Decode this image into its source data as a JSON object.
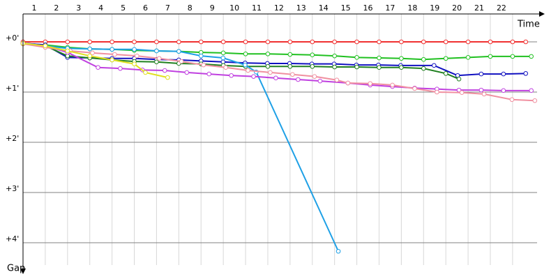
{
  "chart_data": {
    "type": "line",
    "x_label": "Time",
    "y_label": "Gap",
    "xlim": [
      0.5,
      23.6
    ],
    "ylim": [
      -0.5,
      4.5
    ],
    "xticks": [
      1,
      2,
      3,
      4,
      5,
      6,
      7,
      8,
      9,
      10,
      11,
      12,
      13,
      14,
      15,
      16,
      17,
      18,
      19,
      20,
      21,
      22
    ],
    "yticks": [
      {
        "value": 0,
        "label": "+0'"
      },
      {
        "value": 1,
        "label": "+1'"
      },
      {
        "value": 2,
        "label": "+2'"
      },
      {
        "value": 3,
        "label": "+3'"
      },
      {
        "value": 4,
        "label": "+4'"
      }
    ],
    "grid": true,
    "series": [
      {
        "color": "#f03030",
        "x": [
          0.5,
          1.5,
          2.5,
          3.5,
          4.5,
          5.5,
          6.5,
          7.5,
          8.5,
          9.5,
          10.5,
          11.5,
          12.5,
          13.5,
          14.5,
          15.5,
          16.5,
          17.5,
          18.5,
          19.5,
          20.5,
          21.5,
          22.5,
          23.09
        ],
        "values": [
          0,
          0,
          0,
          0,
          0,
          0,
          0,
          0,
          0,
          0,
          0,
          0,
          0,
          0,
          0,
          0,
          0,
          0,
          0,
          0,
          0,
          0,
          0,
          0
        ]
      },
      {
        "color": "#20c020",
        "x": [
          0.5,
          1.5,
          2.5,
          3.5,
          4.5,
          5.5,
          6.5,
          7.5,
          8.5,
          9.5,
          10.5,
          11.5,
          12.5,
          13.5,
          14.5,
          15.5,
          16.5,
          17.5,
          18.5,
          19.5,
          20.5,
          21.5,
          22.5,
          23.34
        ],
        "values": [
          0.03,
          0.06,
          0.11,
          0.14,
          0.15,
          0.17,
          0.18,
          0.19,
          0.21,
          0.22,
          0.24,
          0.24,
          0.25,
          0.26,
          0.28,
          0.31,
          0.32,
          0.33,
          0.35,
          0.33,
          0.31,
          0.29,
          0.29,
          0.29
        ]
      },
      {
        "color": "#1010c0",
        "x": [
          0.5,
          1.5,
          2.5,
          3.5,
          4.5,
          5.5,
          6.5,
          7.5,
          8.5,
          9.49,
          10.48,
          11.48,
          12.48,
          13.48,
          14.48,
          15.48,
          16.47,
          17.47,
          18.97,
          20.03,
          21.09,
          22.09,
          23.09
        ],
        "values": [
          0.03,
          0.06,
          0.31,
          0.32,
          0.33,
          0.33,
          0.35,
          0.36,
          0.38,
          0.4,
          0.42,
          0.43,
          0.43,
          0.44,
          0.44,
          0.46,
          0.46,
          0.47,
          0.47,
          0.67,
          0.64,
          0.64,
          0.63
        ]
      },
      {
        "color": "#208020",
        "x": [
          0.5,
          1.5,
          2.5,
          3.5,
          4.5,
          5.5,
          6.5,
          7.5,
          8.5,
          9.5,
          10.5,
          11.5,
          12.5,
          13.5,
          14.5,
          15.5,
          16.5,
          17.5,
          18.5,
          19.5,
          20.09
        ],
        "values": [
          0.04,
          0.08,
          0.28,
          0.32,
          0.36,
          0.39,
          0.4,
          0.43,
          0.44,
          0.47,
          0.49,
          0.49,
          0.49,
          0.49,
          0.5,
          0.5,
          0.51,
          0.51,
          0.53,
          0.63,
          0.74
        ]
      },
      {
        "color": "#1ea0e6",
        "x": [
          0.5,
          1.5,
          2.5,
          3.5,
          4.5,
          5.5,
          6.5,
          7.5,
          8.5,
          9.49,
          10.48,
          10.98,
          14.67
        ],
        "values": [
          0.04,
          0.08,
          0.13,
          0.14,
          0.15,
          0.15,
          0.18,
          0.19,
          0.28,
          0.32,
          0.46,
          0.6,
          4.17
        ]
      },
      {
        "color": "#c040e0",
        "x": [
          0.5,
          1.5,
          2.5,
          3.87,
          4.87,
          5.87,
          6.87,
          7.86,
          8.86,
          9.86,
          10.86,
          11.86,
          12.86,
          13.85,
          15.1,
          16.1,
          17.1,
          18.1,
          19.1,
          20.09,
          21.09,
          22.09,
          23.34
        ],
        "values": [
          0.03,
          0.08,
          0.21,
          0.51,
          0.53,
          0.56,
          0.57,
          0.61,
          0.64,
          0.67,
          0.69,
          0.72,
          0.75,
          0.78,
          0.82,
          0.86,
          0.89,
          0.92,
          0.94,
          0.96,
          0.96,
          0.97,
          0.97
        ]
      },
      {
        "color": "#f090a0",
        "x": [
          0.5,
          1.5,
          2.62,
          3.62,
          4.62,
          5.62,
          6.62,
          7.62,
          8.61,
          9.61,
          10.61,
          11.61,
          12.61,
          13.6,
          14.6,
          15.1,
          16.1,
          17.1,
          18.1,
          19.1,
          20.22,
          21.22,
          22.47,
          23.5
        ],
        "values": [
          0.04,
          0.11,
          0.18,
          0.22,
          0.25,
          0.28,
          0.33,
          0.39,
          0.46,
          0.51,
          0.57,
          0.61,
          0.65,
          0.69,
          0.76,
          0.82,
          0.83,
          0.86,
          0.93,
          1.0,
          1.01,
          1.04,
          1.15,
          1.17
        ]
      },
      {
        "color": "#e0e020",
        "x": [
          0.5,
          1.5,
          2.5,
          3.5,
          4.5,
          5.5,
          6.0,
          7.0
        ],
        "values": [
          0.03,
          0.08,
          0.18,
          0.28,
          0.36,
          0.44,
          0.61,
          0.71
        ]
      }
    ]
  }
}
